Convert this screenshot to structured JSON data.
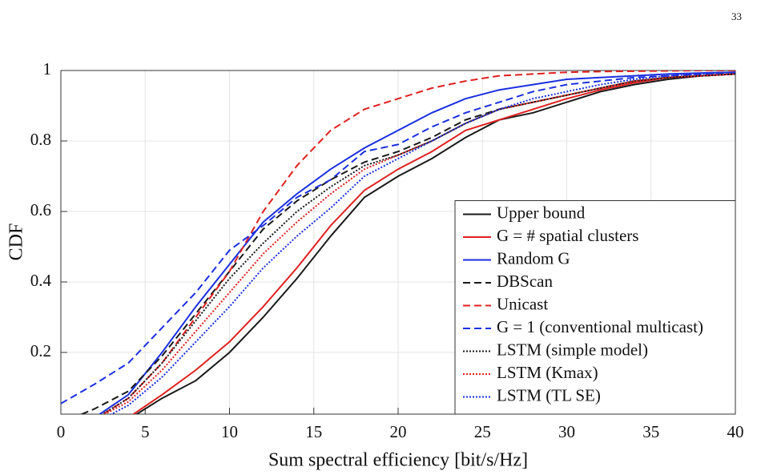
{
  "page_number": "33",
  "chart_data": {
    "type": "line",
    "xlabel": "Sum spectral efficiency [bit/s/Hz]",
    "ylabel": "CDF",
    "x": [
      0,
      2,
      4,
      6,
      8,
      10,
      12,
      14,
      16,
      18,
      20,
      22,
      24,
      26,
      28,
      30,
      32,
      34,
      36,
      38,
      40
    ],
    "xlim": [
      0,
      40
    ],
    "ylim": [
      0.025,
      1
    ],
    "xticks": [
      0,
      5,
      10,
      15,
      20,
      25,
      30,
      35,
      40
    ],
    "yticks": [
      0.2,
      0.4,
      0.6,
      0.8,
      1
    ],
    "grid": true,
    "legend": "lower right",
    "series": [
      {
        "name": "Upper bound",
        "color": "#1a1a1a",
        "style": "solid",
        "values": [
          0,
          0,
          0.01,
          0.07,
          0.12,
          0.2,
          0.3,
          0.41,
          0.53,
          0.64,
          0.7,
          0.75,
          0.81,
          0.86,
          0.88,
          0.91,
          0.94,
          0.96,
          0.975,
          0.985,
          0.99
        ]
      },
      {
        "name": "G =  # spatial clusters",
        "color": "#e02020",
        "style": "solid",
        "values": [
          0,
          0,
          0.015,
          0.08,
          0.15,
          0.23,
          0.33,
          0.44,
          0.56,
          0.66,
          0.72,
          0.77,
          0.83,
          0.86,
          0.89,
          0.92,
          0.945,
          0.965,
          0.98,
          0.985,
          0.99
        ]
      },
      {
        "name": "Random G",
        "color": "#1a2fe0",
        "style": "solid",
        "values": [
          0,
          0.015,
          0.08,
          0.2,
          0.33,
          0.45,
          0.57,
          0.65,
          0.72,
          0.78,
          0.83,
          0.88,
          0.92,
          0.945,
          0.96,
          0.975,
          0.98,
          0.985,
          0.99,
          0.993,
          0.995
        ]
      },
      {
        "name": "DBScan",
        "color": "#1a1a1a",
        "style": "dashed",
        "values": [
          0,
          0.04,
          0.09,
          0.19,
          0.31,
          0.43,
          0.55,
          0.63,
          0.69,
          0.74,
          0.77,
          0.81,
          0.86,
          0.89,
          0.91,
          0.93,
          0.95,
          0.97,
          0.98,
          0.985,
          0.99
        ]
      },
      {
        "name": "Unicast",
        "color": "#e02020",
        "style": "dashed",
        "values": [
          0,
          0.01,
          0.07,
          0.17,
          0.3,
          0.43,
          0.6,
          0.73,
          0.83,
          0.89,
          0.92,
          0.95,
          0.97,
          0.985,
          0.99,
          0.995,
          0.997,
          0.998,
          0.999,
          1,
          1
        ]
      },
      {
        "name": "G = 1 (conventional multicast)",
        "color": "#1a2fe0",
        "style": "dashed",
        "values": [
          0.055,
          0.11,
          0.17,
          0.27,
          0.37,
          0.49,
          0.56,
          0.64,
          0.69,
          0.77,
          0.79,
          0.84,
          0.88,
          0.91,
          0.94,
          0.96,
          0.97,
          0.98,
          0.985,
          0.99,
          0.995
        ]
      },
      {
        "name": "LSTM (simple model)",
        "color": "#1a1a1a",
        "style": "dotted",
        "values": [
          0,
          0.01,
          0.07,
          0.17,
          0.29,
          0.41,
          0.51,
          0.6,
          0.67,
          0.73,
          0.76,
          0.8,
          0.85,
          0.89,
          0.91,
          0.93,
          0.95,
          0.97,
          0.98,
          0.985,
          0.99
        ]
      },
      {
        "name": "LSTM (Kmax)",
        "color": "#e02020",
        "style": "dotted",
        "values": [
          0,
          0.01,
          0.06,
          0.15,
          0.26,
          0.37,
          0.48,
          0.57,
          0.65,
          0.72,
          0.76,
          0.8,
          0.85,
          0.89,
          0.91,
          0.93,
          0.95,
          0.97,
          0.98,
          0.985,
          0.99
        ]
      },
      {
        "name": "LSTM (TL SE)",
        "color": "#1a2fe0",
        "style": "dotted",
        "values": [
          0,
          0,
          0.05,
          0.13,
          0.23,
          0.33,
          0.44,
          0.53,
          0.61,
          0.7,
          0.75,
          0.8,
          0.85,
          0.89,
          0.92,
          0.94,
          0.96,
          0.975,
          0.985,
          0.99,
          0.995
        ]
      }
    ]
  }
}
